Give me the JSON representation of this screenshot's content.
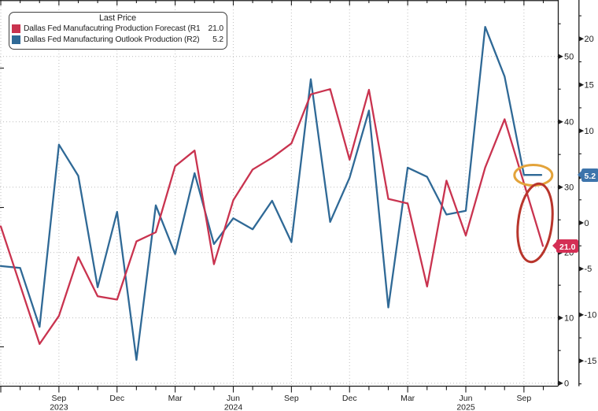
{
  "colors": {
    "red_line": "#c9334f",
    "blue_line": "#2f6996",
    "badge_red_bg": "#d42f55",
    "badge_blue_bg": "#3d74ab",
    "ellipse_orange": "#e3a33a",
    "ellipse_red": "#b8352c",
    "grid": "#c4c4c4",
    "axis": "#1c1c1c",
    "background": "#ffffff"
  },
  "legend": {
    "title": "Last Price",
    "series": [
      {
        "label": "Dallas Fed Manufacutring Production Forecast  (R1)",
        "value": "21.0"
      },
      {
        "label": "Dallas Fed Manufacturing Outlook Production  (R2)",
        "value": "5.2"
      }
    ]
  },
  "badges": {
    "right_axis_inner": {
      "text": "21.0"
    },
    "right_axis_outer": {
      "text": "5.2"
    }
  },
  "chart_data": {
    "type": "line",
    "grid": true,
    "legend_position": "top-left",
    "x_monthly": [
      "2023-06",
      "2023-07",
      "2023-08",
      "2023-09",
      "2023-10",
      "2023-11",
      "2023-12",
      "2024-01",
      "2024-02",
      "2024-03",
      "2024-04",
      "2024-05",
      "2024-06",
      "2024-07",
      "2024-08",
      "2024-09",
      "2024-10",
      "2024-11",
      "2024-12",
      "2025-01",
      "2025-02",
      "2025-03",
      "2025-04",
      "2025-05",
      "2025-06",
      "2025-07",
      "2025-08",
      "2025-09"
    ],
    "series": [
      {
        "name": "Dallas Fed Manufacutring Production Forecast",
        "right_axis": "R1",
        "color_key": "red_line",
        "last_price": 21.0,
        "values": [
          24.0,
          15.0,
          6.0,
          10.3,
          19.3,
          13.3,
          12.8,
          21.7,
          23.1,
          33.2,
          35.6,
          18.2,
          28.0,
          32.7,
          34.5,
          36.7,
          44.2,
          45.0,
          34.2,
          44.9,
          28.2,
          27.5,
          14.8,
          31.0,
          22.6,
          33.0,
          40.4,
          21.0
        ]
      },
      {
        "name": "Dallas Fed Manufacturing Outlook Production",
        "right_axis": "R2",
        "color_key": "blue_line",
        "last_price": 5.2,
        "values": [
          -4.7,
          -4.9,
          -11.3,
          8.5,
          5.1,
          -7.0,
          1.2,
          -14.9,
          1.9,
          -3.4,
          5.4,
          -2.3,
          0.5,
          -0.7,
          2.4,
          -2.1,
          15.6,
          0.1,
          4.9,
          12.2,
          -9.2,
          6.0,
          5.0,
          0.9,
          1.3,
          21.3,
          15.9,
          5.2
        ]
      }
    ],
    "axis_R1": {
      "side": "inner-right",
      "ticks": [
        0,
        10,
        20,
        30,
        40,
        50
      ]
    },
    "axis_R2": {
      "side": "outer-right",
      "ticks": [
        -15,
        -10,
        -5,
        0,
        5,
        10,
        15,
        20
      ]
    },
    "x_axis": {
      "quarter_ticks": [
        {
          "index": 3,
          "label": "Sep"
        },
        {
          "index": 6,
          "label": "Dec"
        },
        {
          "index": 9,
          "label": "Mar"
        },
        {
          "index": 12,
          "label": "Jun"
        },
        {
          "index": 15,
          "label": "Sep"
        },
        {
          "index": 18,
          "label": "Dec"
        },
        {
          "index": 21,
          "label": "Mar"
        },
        {
          "index": 24,
          "label": "Jun"
        },
        {
          "index": 27,
          "label": "Sep"
        }
      ],
      "year_labels": [
        {
          "index": 3,
          "label": "2023"
        },
        {
          "index": 12,
          "label": "2024"
        },
        {
          "index": 24,
          "label": "2025"
        }
      ]
    },
    "annotations": [
      {
        "shape": "ellipse",
        "color_key": "ellipse_orange",
        "target": "blue series flat last-price segment at 5.2"
      },
      {
        "shape": "ellipse",
        "color_key": "ellipse_red",
        "target": "red series final decline to 21.0"
      }
    ]
  }
}
